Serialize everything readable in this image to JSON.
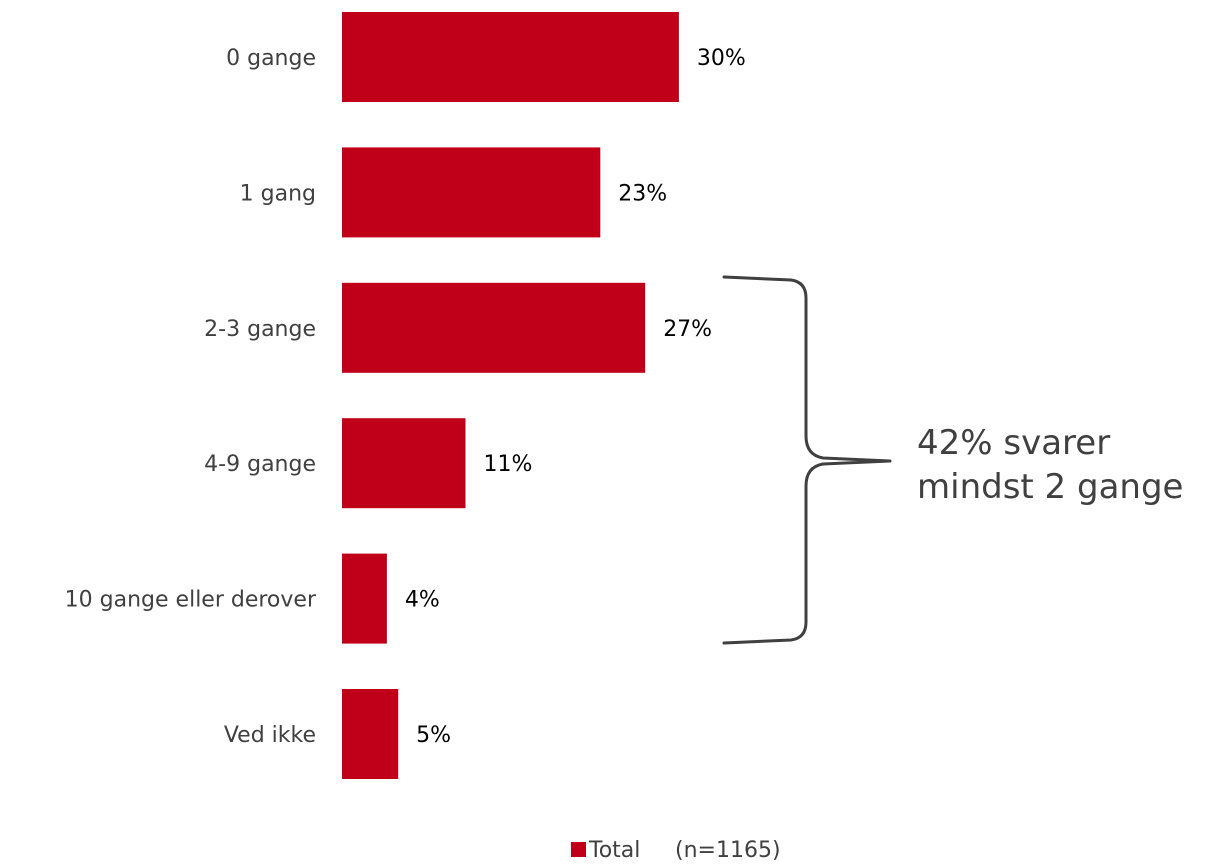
{
  "chart_data": {
    "type": "bar",
    "orientation": "horizontal",
    "categories": [
      "0 gange",
      "1 gang",
      "2-3 gange",
      "4-9 gange",
      "10 gange eller derover",
      "Ved ikke"
    ],
    "series": [
      {
        "name": "Total",
        "values": [
          30,
          23,
          27,
          11,
          4,
          5
        ],
        "value_labels": [
          "30%",
          "23%",
          "27%",
          "11%",
          "4%",
          "5%"
        ]
      }
    ],
    "xlim": [
      0,
      30
    ],
    "grid": false,
    "legend": {
      "label": "Total",
      "note": "(n=1165)",
      "position": "bottom"
    },
    "annotation": {
      "text_lines": [
        "42% svarer",
        "mindst 2 gange"
      ],
      "brackets_categories": [
        "2-3 gange",
        "4-9 gange",
        "10 gange eller derover"
      ]
    },
    "colors": {
      "bar": "#C00018",
      "bracket": "#404040"
    }
  }
}
